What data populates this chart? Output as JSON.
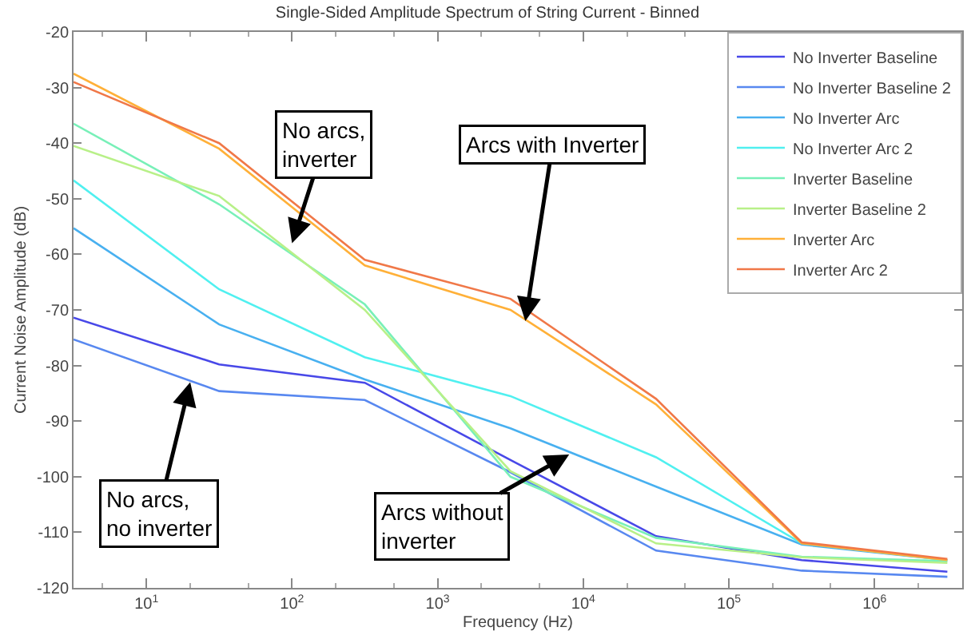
{
  "chart_data": {
    "type": "line",
    "title": "Single-Sided Amplitude Spectrum of String Current - Binned",
    "xlabel": "Frequency (Hz)",
    "ylabel": "Current Noise Amplitude (dB)",
    "log": "x",
    "x": [
      3.16,
      31.6,
      316,
      3162,
      31623,
      316228,
      3162278
    ],
    "xlim": [
      3.16,
      4000000
    ],
    "xticks": [
      {
        "value": 10,
        "label": "10$^{1}$"
      },
      {
        "value": 100,
        "label": "10$^{2}$"
      },
      {
        "value": 1000,
        "label": "10$^{3}$"
      },
      {
        "value": 10000,
        "label": "10$^{4}$"
      },
      {
        "value": 100000,
        "label": "10$^{5}$"
      },
      {
        "value": 1000000,
        "label": "10$^{6}$"
      }
    ],
    "ylim": [
      -120,
      -20
    ],
    "yticks": [
      -120,
      -110,
      -100,
      -90,
      -80,
      -70,
      -60,
      -50,
      -40,
      -30,
      -20
    ],
    "grid": false,
    "legend": "top right",
    "marker": "none",
    "line_style": "solid",
    "series": [
      {
        "name": "No Inverter Baseline",
        "color": "#4848e8",
        "values": [
          -71.4,
          -79.8,
          -83.1,
          -97,
          -110.7,
          -115,
          -117.1
        ]
      },
      {
        "name": "No Inverter Baseline 2",
        "color": "#5888f0",
        "values": [
          -75.3,
          -84.6,
          -86.2,
          -99.2,
          -113.3,
          -116.9,
          -118
        ]
      },
      {
        "name": "No Inverter Arc",
        "color": "#48b0f0",
        "values": [
          -55.3,
          -72.6,
          -82.5,
          -91.3,
          -101.8,
          -112.2,
          -115
        ]
      },
      {
        "name": "No Inverter Arc 2",
        "color": "#50f0f0",
        "values": [
          -46.7,
          -66.3,
          -78.5,
          -85.5,
          -96.5,
          -112,
          -115
        ]
      },
      {
        "name": "Inverter Baseline",
        "color": "#78f0b8",
        "values": [
          -36.5,
          -51,
          -69,
          -100,
          -111,
          -114.4,
          -115.2
        ]
      },
      {
        "name": "Inverter Baseline 2",
        "color": "#b8f088",
        "values": [
          -40.5,
          -49.5,
          -70,
          -99,
          -112,
          -114.5,
          -115.5
        ]
      },
      {
        "name": "Inverter Arc",
        "color": "#ffb038",
        "values": [
          -27.5,
          -41,
          -62,
          -70,
          -87,
          -112,
          -115
        ]
      },
      {
        "name": "Inverter Arc 2",
        "color": "#f07848",
        "values": [
          -29,
          -40,
          -61,
          -68,
          -86,
          -111.8,
          -114.8
        ]
      }
    ],
    "annotations": [
      {
        "text": "No arcs,\ninverter",
        "x": 100,
        "y": -58
      },
      {
        "text": "Arcs with Inverter",
        "x": 4000,
        "y": -72
      },
      {
        "text": "No arcs,\nno inverter",
        "x": 20,
        "y": -83
      },
      {
        "text": "Arcs without\ninverter",
        "x": 8000,
        "y": -96
      }
    ]
  }
}
